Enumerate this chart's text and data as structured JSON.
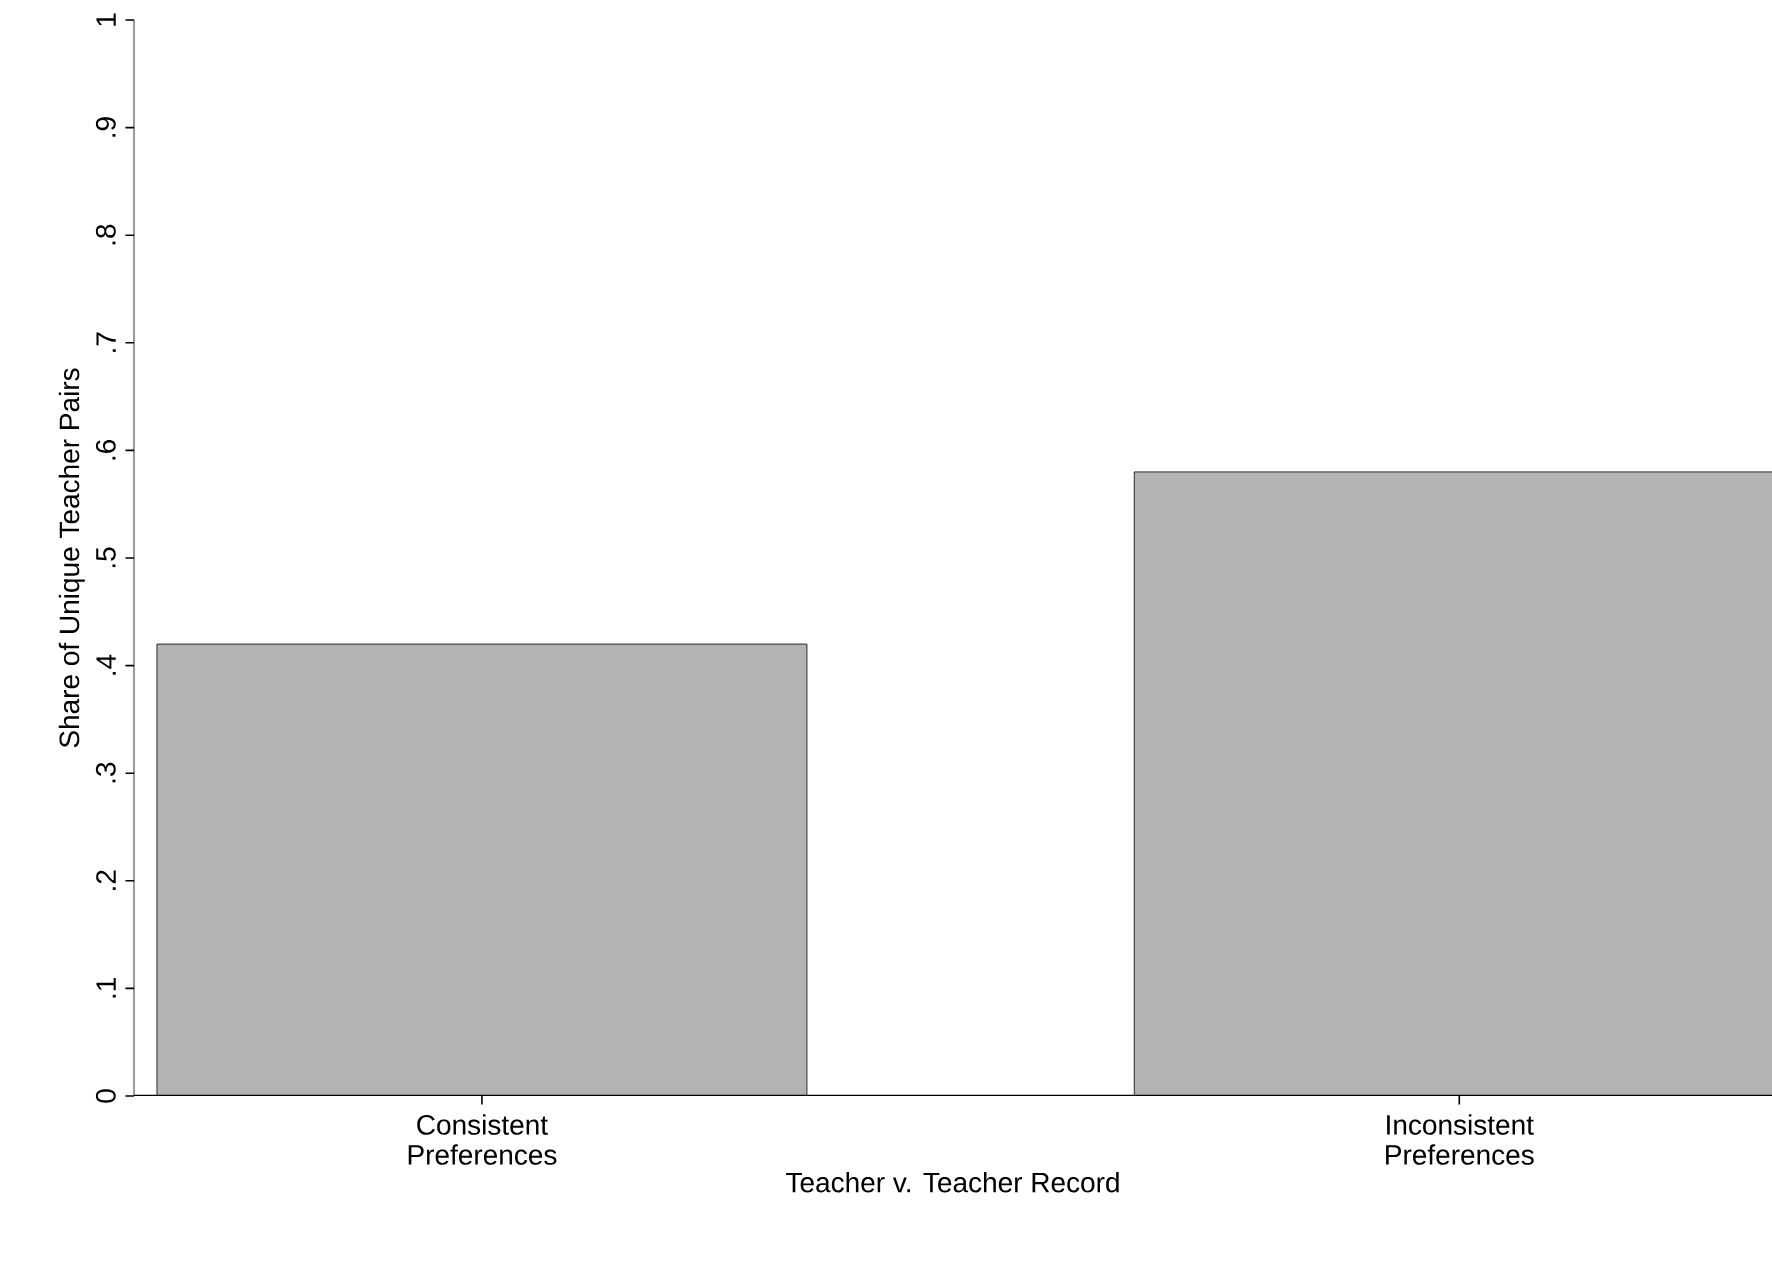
{
  "chart_data": {
    "type": "bar",
    "xlabel": "Teacher v. Teacher Record",
    "ylabel": "Share of Unique Teacher Pairs",
    "categories": [
      "Consistent Preferences",
      "Inconsistent Preferences"
    ],
    "values": [
      0.42,
      0.58
    ],
    "color": "#b3b3b3",
    "ylim": [
      0,
      1
    ],
    "yticks": [
      0,
      {
        "value": 0.1,
        "label": ".1"
      },
      {
        "value": 0.2,
        "label": ".2"
      },
      {
        "value": 0.3,
        "label": ".3"
      },
      {
        "value": 0.4,
        "label": ".4"
      },
      {
        "value": 0.5,
        "label": ".5"
      },
      {
        "value": 0.6,
        "label": ".6"
      },
      {
        "value": 0.7,
        "label": ".7"
      },
      {
        "value": 0.8,
        "label": ".8"
      },
      {
        "value": 0.9,
        "label": ".9"
      },
      1
    ],
    "grid": false
  }
}
